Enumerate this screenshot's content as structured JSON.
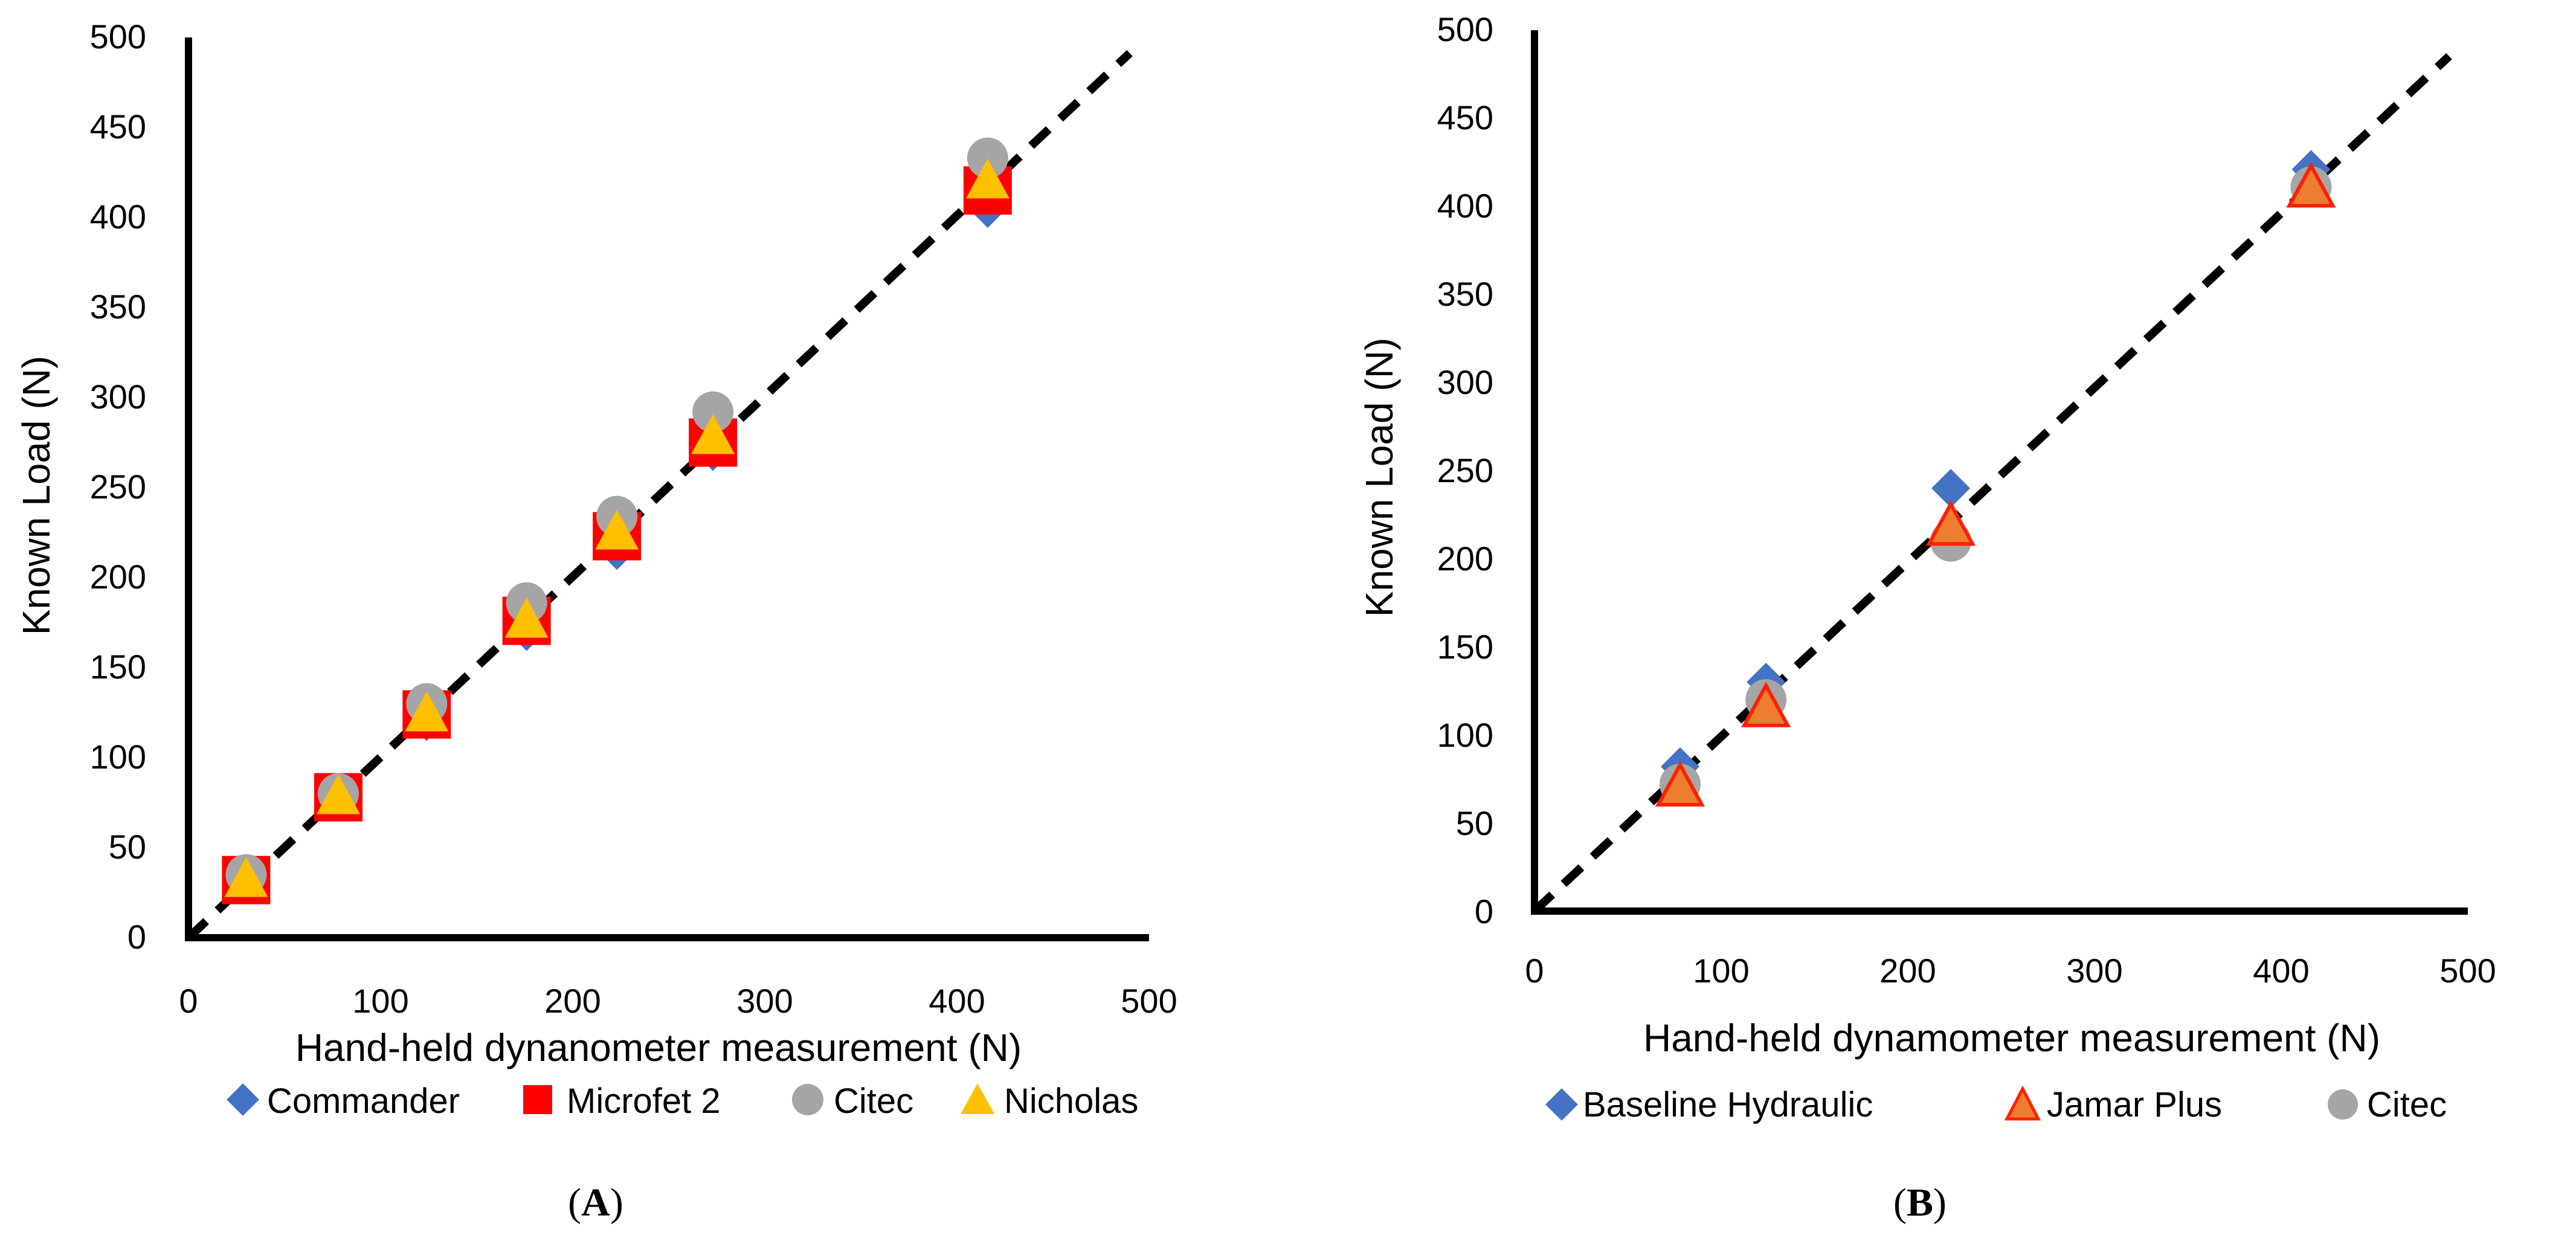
{
  "chart_data": [
    {
      "type": "scatter",
      "panel_label": "A",
      "xlabel": "Hand-held dynanometer measurement (N)",
      "ylabel": "Known Load (N)",
      "xlim": [
        0,
        500
      ],
      "ylim": [
        0,
        500
      ],
      "x_ticks": [
        "0",
        "100",
        "200",
        "300",
        "400",
        "500"
      ],
      "y_ticks": [
        "0",
        "50",
        "100",
        "150",
        "200",
        "250",
        "300",
        "350",
        "400",
        "450",
        "500"
      ],
      "legend_position": "bottom",
      "reference_line": {
        "style": "dashed",
        "from": [
          0,
          0
        ],
        "to": [
          490,
          490
        ]
      },
      "series": [
        {
          "name": "Commander",
          "marker": "diamond",
          "color": "#4472C4",
          "x": [
            30,
            78,
            124,
            176,
            223,
            273,
            416
          ],
          "y": [
            30,
            78,
            120,
            170,
            215,
            270,
            405
          ]
        },
        {
          "name": "Microfet 2",
          "marker": "square",
          "color": "#FF0000",
          "x": [
            30,
            78,
            124,
            176,
            223,
            273,
            416
          ],
          "y": [
            32,
            78,
            124,
            176,
            223,
            275,
            415
          ]
        },
        {
          "name": "Citec",
          "marker": "circle",
          "color": "#A5A5A5",
          "x": [
            30,
            78,
            124,
            176,
            223,
            273,
            416
          ],
          "y": [
            35,
            80,
            130,
            186,
            234,
            292,
            433
          ]
        },
        {
          "name": "Nicholas",
          "marker": "triangle",
          "color": "#FFC000",
          "x": [
            30,
            78,
            124,
            176,
            223,
            273,
            416
          ],
          "y": [
            32,
            78,
            124,
            176,
            225,
            278,
            420
          ]
        }
      ]
    },
    {
      "type": "scatter",
      "panel_label": "B",
      "xlabel": "Hand-held dynamometer measurement (N)",
      "ylabel": "Known Load (N)",
      "xlim": [
        0,
        500
      ],
      "ylim": [
        0,
        500
      ],
      "x_ticks": [
        "0",
        "100",
        "200",
        "300",
        "400",
        "500"
      ],
      "y_ticks": [
        "0",
        "50",
        "100",
        "150",
        "200",
        "250",
        "300",
        "350",
        "400",
        "450",
        "500"
      ],
      "legend_position": "bottom",
      "reference_line": {
        "style": "dashed",
        "from": [
          0,
          0
        ],
        "to": [
          490,
          490
        ]
      },
      "series": [
        {
          "name": "Baseline Hydraulic",
          "marker": "diamond",
          "color": "#4472C4",
          "x": [
            78,
            124,
            223,
            416
          ],
          "y": [
            82,
            130,
            240,
            421
          ]
        },
        {
          "name": "Jamar Plus",
          "marker": "triangle",
          "color": "#ED7D31",
          "x": [
            78,
            124,
            223,
            416
          ],
          "y": [
            70,
            115,
            218,
            410
          ]
        },
        {
          "name": "Citec",
          "marker": "circle",
          "color": "#A5A5A5",
          "x": [
            78,
            124,
            223,
            416
          ],
          "y": [
            72,
            120,
            210,
            411
          ]
        }
      ]
    }
  ]
}
